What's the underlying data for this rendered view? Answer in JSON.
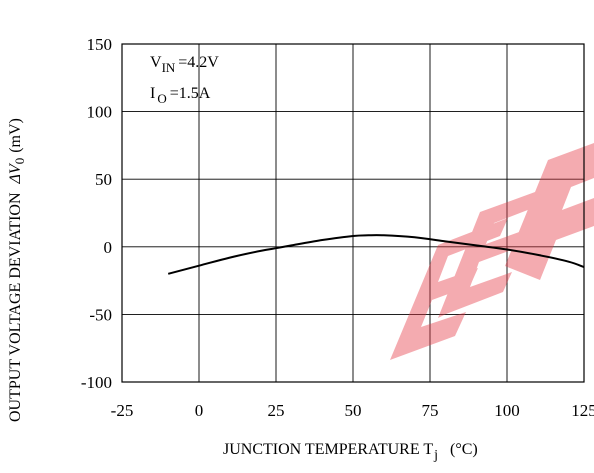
{
  "chart_data": {
    "type": "line",
    "xlabel_main": "JUNCTION TEMPERATURE T",
    "xlabel_sub": "j",
    "xlabel_unit": "(°C)",
    "ylabel_main": "OUTPUT VOLTAGE DEVIATION",
    "ylabel_delta": "Δ",
    "ylabel_v": "V",
    "ylabel_sub": "0",
    "ylabel_unit": "(mV)",
    "xlim": [
      -25,
      125
    ],
    "ylim": [
      -100,
      150
    ],
    "x_ticks": [
      "-25",
      "0",
      "25",
      "50",
      "75",
      "100",
      "125"
    ],
    "y_ticks": [
      "150",
      "100",
      "50",
      "0",
      "-50",
      "-100"
    ],
    "grid": true,
    "annotations": {
      "vin_label": "V",
      "vin_sub": "IN",
      "vin_value": "=4.2V",
      "io_label": "I",
      "io_sub": "O",
      "io_value": "=1.5A"
    },
    "watermark_text": "EEP",
    "watermark_color": "#e63946",
    "series": [
      {
        "x": [
          -10,
          0,
          10,
          20,
          25,
          30,
          40,
          50,
          55,
          60,
          70,
          80,
          90,
          100,
          110,
          120,
          125
        ],
        "y": [
          -20,
          -14,
          -8,
          -3,
          -1,
          1,
          5,
          8,
          8.5,
          8.5,
          7,
          4,
          1,
          -2,
          -6,
          -11,
          -15
        ]
      }
    ]
  }
}
